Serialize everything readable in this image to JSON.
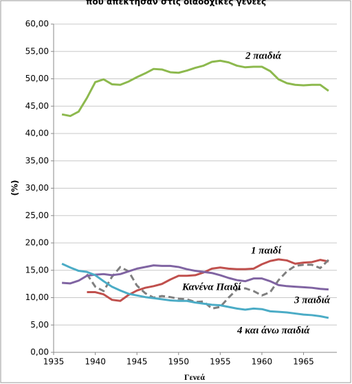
{
  "chart_data": {
    "type": "line",
    "title": "που απέκτησαν στις διαδοχικές γενεές",
    "x_label": "Γενεά",
    "y_label": "(%)",
    "x": [
      1936,
      1937,
      1938,
      1939,
      1940,
      1941,
      1942,
      1943,
      1944,
      1945,
      1946,
      1947,
      1948,
      1949,
      1950,
      1951,
      1952,
      1953,
      1954,
      1955,
      1956,
      1957,
      1958,
      1959,
      1960,
      1961,
      1962,
      1963,
      1964,
      1965,
      1966,
      1967,
      1968
    ],
    "xlim": [
      1935,
      1969
    ],
    "xticks": [
      1935,
      1940,
      1945,
      1950,
      1955,
      1960,
      1965
    ],
    "ylim": [
      0,
      60
    ],
    "yticks": [
      {
        "value": 0,
        "label": "0,00"
      },
      {
        "value": 5,
        "label": "5,00"
      },
      {
        "value": 10,
        "label": "10,00"
      },
      {
        "value": 15,
        "label": "15,00"
      },
      {
        "value": 20,
        "label": "20,00"
      },
      {
        "value": 25,
        "label": "25,00"
      },
      {
        "value": 30,
        "label": "30,00"
      },
      {
        "value": 35,
        "label": "35,00"
      },
      {
        "value": 40,
        "label": "40,00"
      },
      {
        "value": 45,
        "label": "45,00"
      },
      {
        "value": 50,
        "label": "50,00"
      },
      {
        "value": 55,
        "label": "55,00"
      },
      {
        "value": 60,
        "label": "60,00"
      }
    ],
    "grid": true,
    "series": [
      {
        "name": "2 παιδιά",
        "color": "#8db94e",
        "values": [
          43.5,
          43.2,
          44,
          46.5,
          49.4,
          49.9,
          49.0,
          48.9,
          49.5,
          50.3,
          51,
          51.8,
          51.7,
          51.2,
          51.1,
          51.5,
          52,
          52.4,
          53.1,
          53.3,
          53,
          52.4,
          52.1,
          52.2,
          52.2,
          51.4,
          49.9,
          49.2,
          48.9,
          48.8,
          48.9,
          48.9,
          47.8
        ]
      },
      {
        "name": "1 παιδί",
        "color": "#c0504d",
        "values": [
          null,
          null,
          null,
          11.0,
          11.0,
          10.6,
          9.6,
          9.4,
          10.5,
          11.3,
          11.8,
          12.1,
          12.5,
          13.3,
          14.0,
          14.0,
          14.1,
          14.6,
          15.3,
          15.5,
          15.3,
          15.2,
          15.2,
          15.3,
          16.1,
          16.7,
          17.0,
          16.8,
          16.2,
          16.4,
          16.5,
          16.9,
          16.6
        ]
      },
      {
        "name": "Κανένα Παιδί",
        "color": "#7f7f7f",
        "dashed": true,
        "values": [
          null,
          null,
          null,
          14.3,
          12.0,
          11.2,
          13.8,
          15.6,
          14.8,
          12.2,
          10.8,
          10.0,
          10.3,
          10.1,
          9.8,
          9.7,
          9.2,
          9.3,
          8.0,
          8.3,
          10.0,
          11.5,
          11.7,
          11.2,
          10.4,
          11.0,
          13.2,
          14.8,
          15.8,
          16.0,
          16.0,
          15.4,
          16.9
        ]
      },
      {
        "name": "3 παιδιά",
        "color": "#8064a2",
        "values": [
          12.7,
          12.6,
          13.1,
          14.0,
          14.2,
          14.3,
          14.1,
          14.3,
          14.8,
          15.3,
          15.6,
          15.9,
          15.8,
          15.8,
          15.6,
          15.2,
          14.9,
          14.7,
          14.5,
          14.1,
          13.6,
          13.2,
          13.0,
          13.5,
          13.5,
          13.0,
          12.3,
          12.1,
          12.0,
          11.9,
          11.8,
          11.6,
          11.5
        ]
      },
      {
        "name": "4 και άνω παιδιά",
        "color": "#4bacc6",
        "values": [
          16.2,
          15.5,
          14.9,
          14.7,
          14.1,
          13.0,
          12.0,
          11.3,
          10.7,
          10.4,
          10.1,
          9.9,
          9.7,
          9.5,
          9.4,
          9.4,
          9.1,
          8.9,
          8.7,
          8.6,
          8.3,
          8.0,
          7.8,
          8.0,
          7.9,
          7.5,
          7.4,
          7.3,
          7.1,
          6.9,
          6.8,
          6.6,
          6.3
        ]
      }
    ]
  }
}
